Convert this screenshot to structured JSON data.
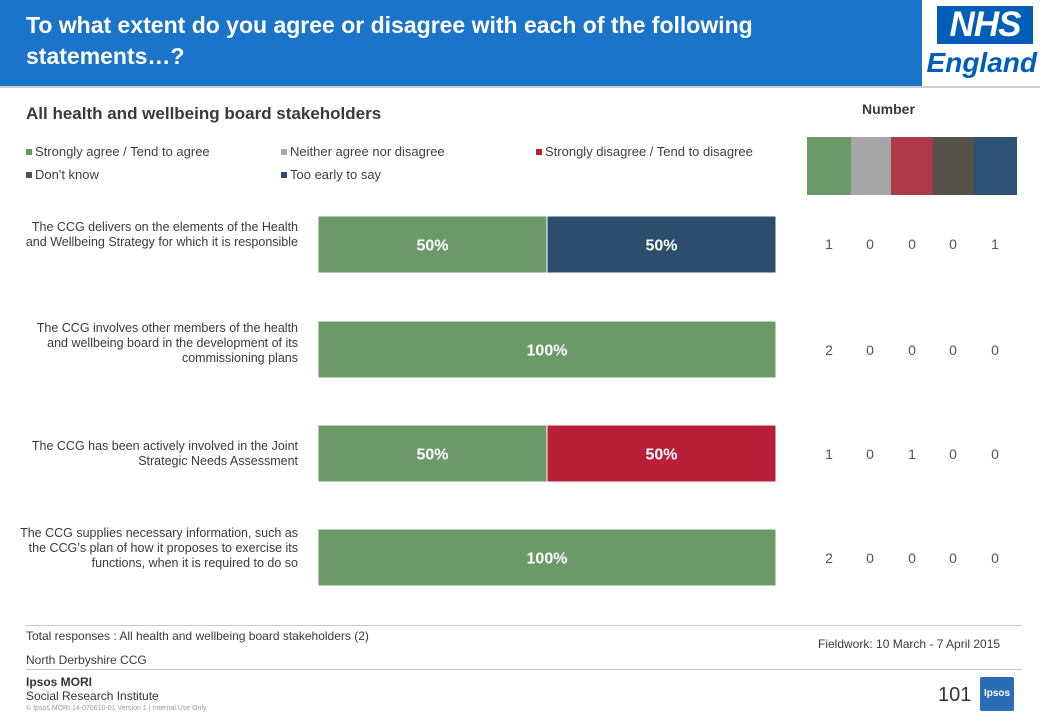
{
  "header": {
    "title": "To what extent do you agree or disagree with each of the following statements…?",
    "logo_nhs": "NHS",
    "logo_england": "England"
  },
  "subtitle": "All health and wellbeing board stakeholders",
  "number_label": "Number",
  "chart_data": {
    "type": "bar",
    "orientation": "horizontal-stacked-100",
    "categories": [
      "The CCG delivers on the elements of the Health and Wellbeing Strategy for which it is responsible",
      "The CCG involves other members of the health and wellbeing board in the development of its commissioning plans",
      "The CCG has been actively involved in the Joint Strategic Needs Assessment",
      "The CCG supplies necessary information, such as the CCG’s plan of how it proposes to exercise its functions, when it is required to do so"
    ],
    "series": [
      {
        "name": "Strongly agree / Tend to agree",
        "color": "#6b9a68",
        "values": [
          50,
          100,
          50,
          100
        ],
        "counts": [
          1,
          2,
          1,
          2
        ]
      },
      {
        "name": "Neither agree nor disagree",
        "color": "#a6a6a6",
        "values": [
          0,
          0,
          0,
          0
        ],
        "counts": [
          0,
          0,
          0,
          0
        ]
      },
      {
        "name": "Strongly disagree / Tend to disagree",
        "color": "#b8203a",
        "values": [
          0,
          0,
          50,
          0
        ],
        "counts": [
          0,
          0,
          1,
          0
        ]
      },
      {
        "name": "Don't know",
        "color": "#55524a",
        "values": [
          0,
          0,
          0,
          0
        ],
        "counts": [
          0,
          0,
          0,
          0
        ]
      },
      {
        "name": "Too early to say",
        "color": "#2c4e6c",
        "values": [
          50,
          0,
          0,
          0
        ],
        "counts": [
          1,
          0,
          0,
          0
        ]
      }
    ],
    "data_labels": [
      [
        "50%",
        "",
        "",
        "",
        "50%"
      ],
      [
        "100%",
        "",
        "",
        "",
        ""
      ],
      [
        "50%",
        "",
        "50%",
        "",
        ""
      ],
      [
        "100%",
        "",
        "",
        "",
        ""
      ]
    ],
    "xlim": [
      0,
      100
    ],
    "legend_position": "top"
  },
  "legend_block_colors": [
    "#6b9a68",
    "#a6a6a6",
    "#b8203a",
    "#55524a",
    "#2c4e6c"
  ],
  "legend_block_strong_colors": [
    "#6b9a68",
    "#a6a6a6",
    "#ae3a49",
    "#55524a",
    "#2e5274"
  ],
  "footer": {
    "total_responses": "Total responses : All health and wellbeing board stakeholders (2)",
    "ccg": "North Derbyshire CCG",
    "fieldwork": "Fieldwork: 10 March - 7 April 2015",
    "ipsos_name": "Ipsos MORI",
    "ipsos_sub": "Social Research Institute",
    "copyright": "© Ipsos MORI     14-070610-01  Version 1 | Internal Use Only",
    "page_number": "101",
    "badge": "Ipsos"
  }
}
